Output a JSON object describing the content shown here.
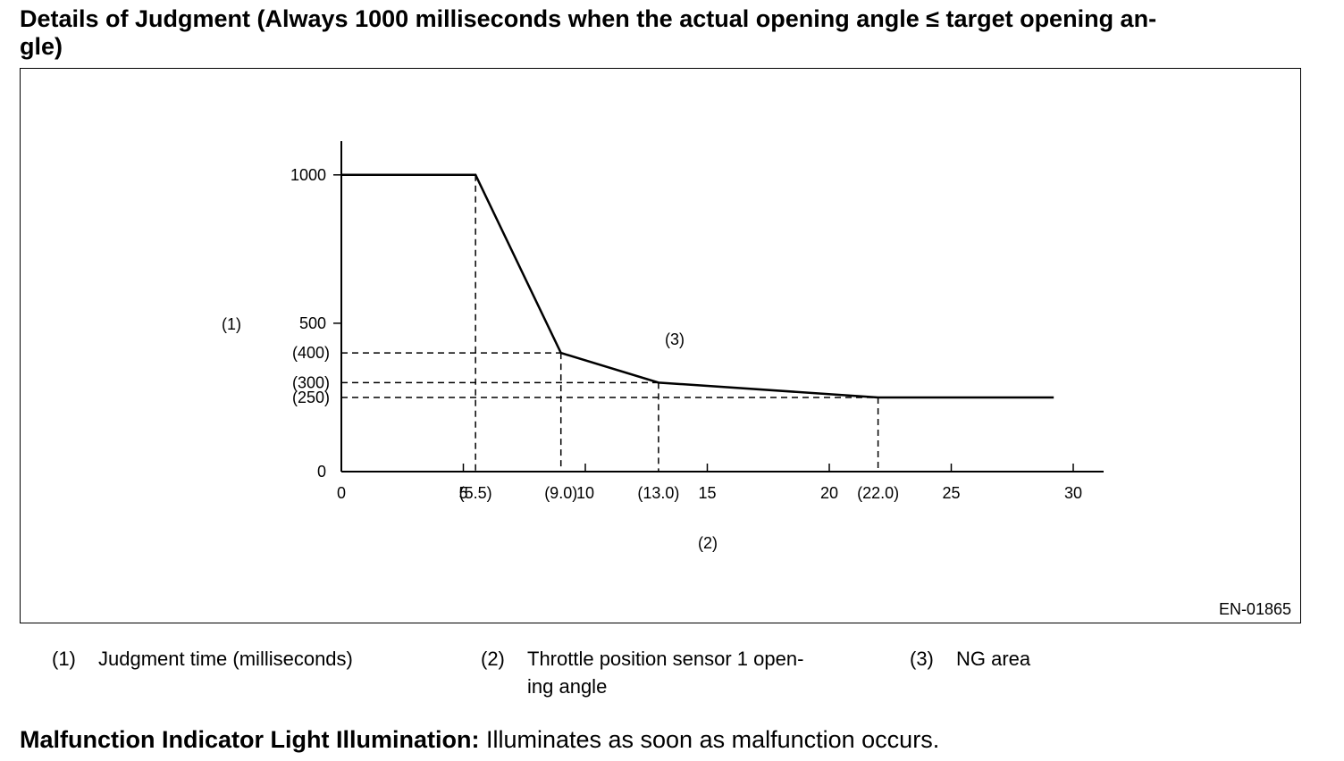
{
  "title": "Details of Judgment (Always 1000 milliseconds when the actual opening angle ≤ target opening an-gle)",
  "title_lines": [
    "Details of Judgment (Always 1000 milliseconds when the actual opening angle ≤ target opening an-",
    "gle)"
  ],
  "figure_code": "EN-01865",
  "chart_data": {
    "type": "line",
    "title": "",
    "x": [
      0,
      5.5,
      9.0,
      13.0,
      22.0,
      29.2
    ],
    "y": [
      1000,
      1000,
      400,
      300,
      250,
      250
    ],
    "xlim": [
      0,
      31
    ],
    "ylim": [
      0,
      1110
    ],
    "x_ticks": [
      {
        "value": 0,
        "label": "0"
      },
      {
        "value": 5,
        "label": "5"
      },
      {
        "value": 10,
        "label": "10"
      },
      {
        "value": 15,
        "label": "15"
      },
      {
        "value": 20,
        "label": "20"
      },
      {
        "value": 25,
        "label": "25"
      },
      {
        "value": 30,
        "label": "30"
      }
    ],
    "x_marker_labels": [
      {
        "value": 5.5,
        "label": "(5.5)"
      },
      {
        "value": 9.0,
        "label": "(9.0)"
      },
      {
        "value": 13.0,
        "label": "(13.0)"
      },
      {
        "value": 22.0,
        "label": "(22.0)"
      }
    ],
    "y_ticks": [
      {
        "value": 0,
        "label": "0"
      },
      {
        "value": 500,
        "label": "500"
      },
      {
        "value": 1000,
        "label": "1000"
      }
    ],
    "y_marker_labels": [
      {
        "value": 400,
        "label": "(400)"
      },
      {
        "value": 300,
        "label": "(300)"
      },
      {
        "value": 250,
        "label": "(250)"
      }
    ],
    "xlabel": "(2)",
    "ylabel": "(1)",
    "region_label": "(3)",
    "guides": [
      {
        "x": 5.5,
        "y": 1000,
        "to": "x-axis"
      },
      {
        "x": 9.0,
        "y": 400,
        "to": "both"
      },
      {
        "x": 13.0,
        "y": 300,
        "to": "both"
      },
      {
        "x": 22.0,
        "y": 250,
        "to": "both"
      }
    ]
  },
  "legend": [
    {
      "num": "(1)",
      "text": "Judgment time (milliseconds)"
    },
    {
      "num": "(2)",
      "text": "Throttle position sensor 1 open-",
      "text2": "ing angle"
    },
    {
      "num": "(3)",
      "text": "NG area"
    }
  ],
  "mil": {
    "label": "Malfunction Indicator Light Illumination:",
    "text": " Illuminates as soon as malfunction occurs."
  }
}
